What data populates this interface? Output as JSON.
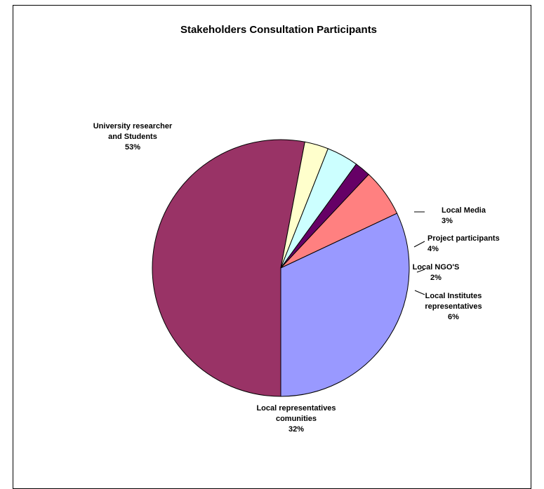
{
  "chart_data": {
    "type": "pie",
    "title": "Stakeholders Consultation Participants",
    "slices": [
      {
        "label": [
          "University researcher",
          "and Students",
          "53%"
        ],
        "value": 53,
        "color": "#993366"
      },
      {
        "label": [
          "Local Media",
          "3%"
        ],
        "value": 3,
        "color": "#FFFFCC"
      },
      {
        "label": [
          "Project participants",
          "4%"
        ],
        "value": 4,
        "color": "#CCFFFF"
      },
      {
        "label": [
          "Local NGO'S",
          "2%"
        ],
        "value": 2,
        "color": "#660066"
      },
      {
        "label": [
          "Local Institutes",
          "representatives",
          "6%"
        ],
        "value": 6,
        "color": "#FF8080"
      },
      {
        "label": [
          "Local representatives",
          "comunities",
          "32%"
        ],
        "value": 32,
        "color": "#9999FF"
      }
    ]
  }
}
